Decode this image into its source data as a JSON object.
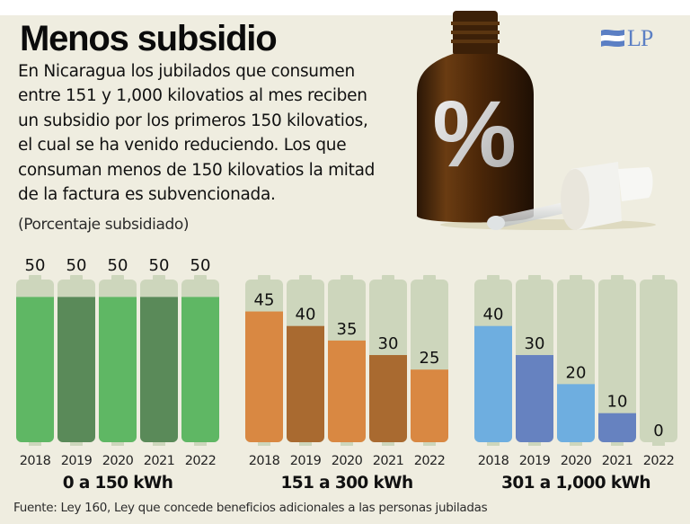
{
  "header": {
    "title": "Menos subsidio",
    "logo_text": "LP",
    "description": "En Nicaragua los jubilados que consumen\nentre 151 y 1,000 kilovatios al mes reciben\nun subsidio por los primeros 150 kilovatios,\nel cual se ha venido reduciendo. Los que\nconsuman menos de 150 kilovatios la mitad\nde la factura es subvencionada.",
    "units_note": "(Porcentaje subsidiado)",
    "bottle_icon": "percent-bottle-icon",
    "bottle_symbol": "%"
  },
  "footer": {
    "source": "Fuente: Ley 160, Ley que concede beneficios adicionales a las personas jubiladas"
  },
  "colors": {
    "background": "#efede0",
    "battery_empty": "#cdd6bc",
    "green_light": "#5fb764",
    "green_dark": "#5a8a59",
    "orange_light": "#d98842",
    "orange_dark": "#a96a30",
    "blue_light": "#6eaee0",
    "blue_dark": "#6682c0",
    "logo_blue": "#5b7fc4"
  },
  "chart_data": {
    "type": "bar",
    "style": "battery",
    "title": "Menos subsidio",
    "ylabel": "(Porcentaje subsidiado)",
    "ylim": [
      0,
      56
    ],
    "categories": [
      "2018",
      "2019",
      "2020",
      "2021",
      "2022"
    ],
    "series": [
      {
        "name": "0 a 150 kWh",
        "values": [
          50,
          50,
          50,
          50,
          50
        ],
        "label_position": "above"
      },
      {
        "name": "151 a 300 kWh",
        "values": [
          45,
          40,
          35,
          30,
          25
        ],
        "label_position": "inside"
      },
      {
        "name": "301 a 1,000 kWh",
        "values": [
          40,
          30,
          20,
          10,
          0
        ],
        "label_position": "inside"
      }
    ]
  }
}
